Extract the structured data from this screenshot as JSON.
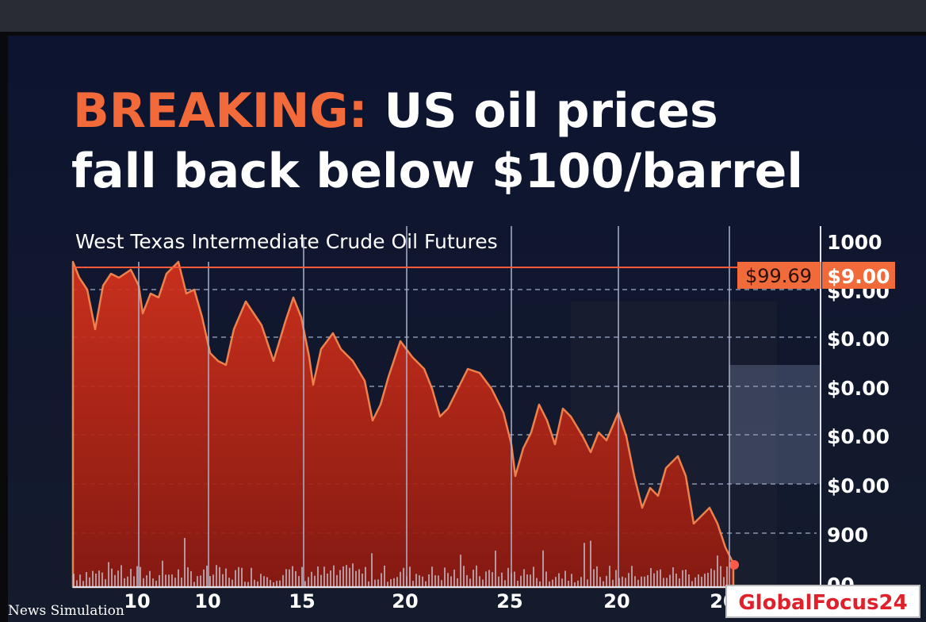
{
  "headline": {
    "prefix": "BREAKING:",
    "rest": "US oil prices",
    "line2": "fall back below $100/barrel"
  },
  "chart": {
    "title": "West Texas Intermediate Crude Oil Futures",
    "price_tag": "$99.69",
    "axis_tag": "$9.00",
    "y_labels": [
      "1000",
      "$0.00",
      "$0.00",
      "$0.00",
      "$0.00",
      "$0.00",
      "900",
      "00"
    ],
    "x_labels": [
      "10",
      "10",
      "15",
      "20",
      "25",
      "20",
      "20"
    ]
  },
  "watermark_left": "News Simulation",
  "watermark_right": "GlobalFocus24"
}
